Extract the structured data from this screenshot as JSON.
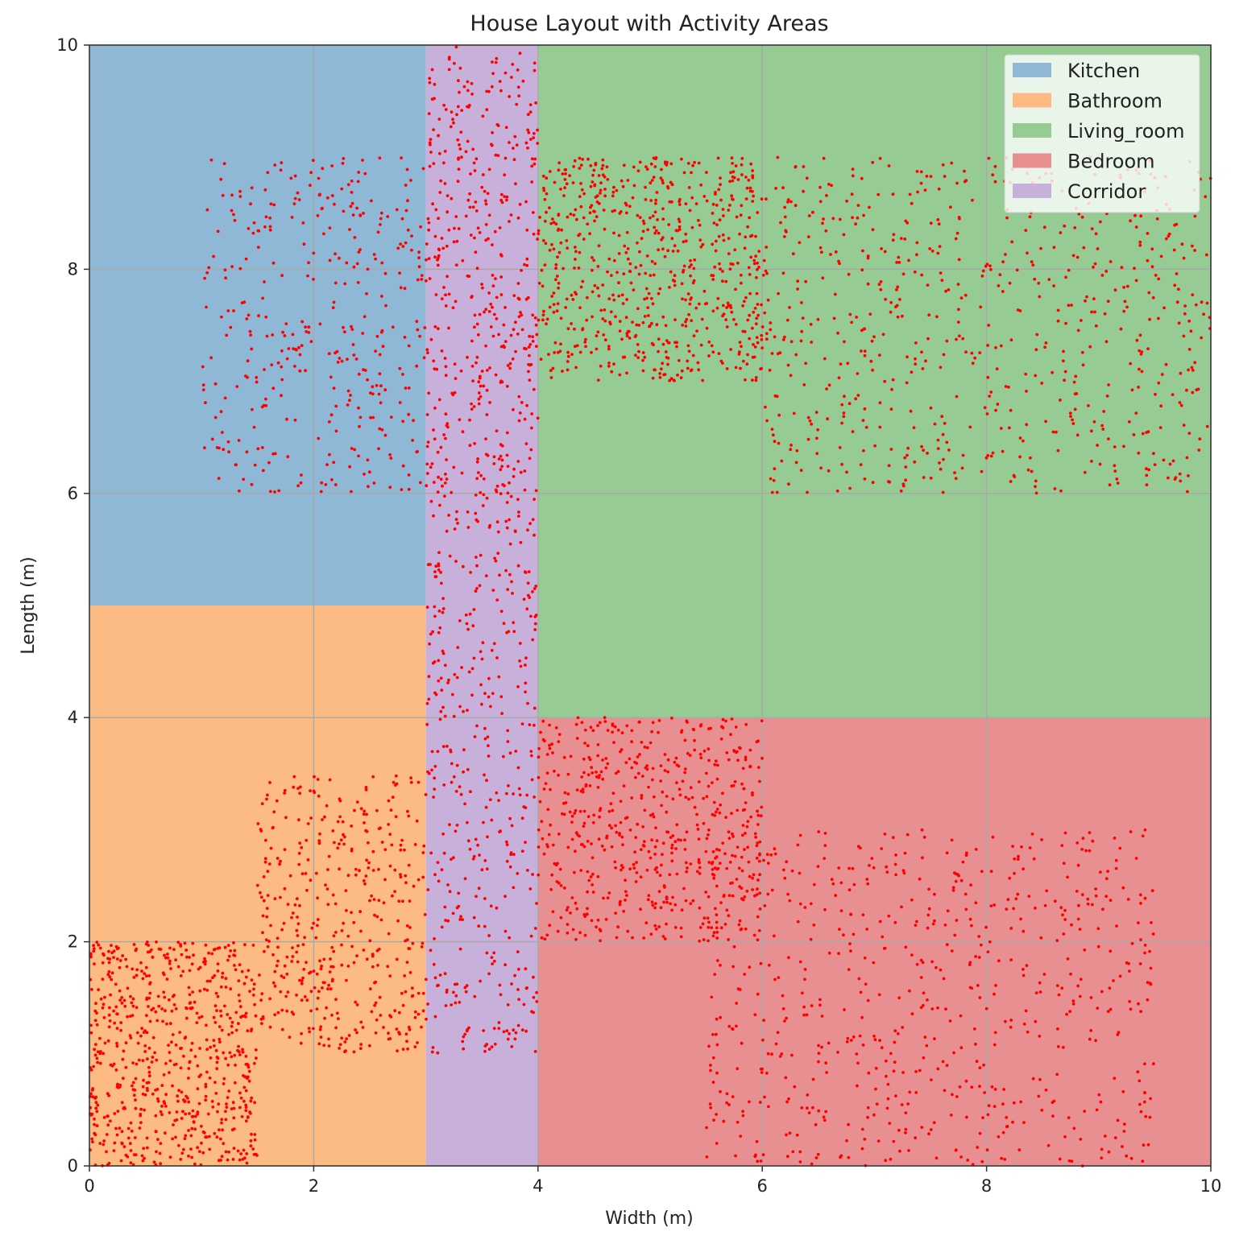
{
  "chart_data": {
    "type": "scatter",
    "title": "House Layout with Activity Areas",
    "xlabel": "Width (m)",
    "ylabel": "Length (m)",
    "xlim": [
      0,
      10
    ],
    "ylim": [
      0,
      10
    ],
    "xticks": [
      "0",
      "2",
      "4",
      "6",
      "8",
      "10"
    ],
    "yticks": [
      "0",
      "2",
      "4",
      "6",
      "8",
      "10"
    ],
    "grid": true,
    "legend_position": "top-right",
    "areas": [
      {
        "name": "Kitchen",
        "x0": 0,
        "x1": 3,
        "y0": 5,
        "y1": 10,
        "color": "#8fb8d6"
      },
      {
        "name": "Bathroom",
        "x0": 0,
        "x1": 3,
        "y0": 0,
        "y1": 5,
        "color": "#fdbb84"
      },
      {
        "name": "Living_room",
        "x0": 4,
        "x1": 10,
        "y0": 4,
        "y1": 10,
        "color": "#96cc94"
      },
      {
        "name": "Bedroom",
        "x0": 4,
        "x1": 10,
        "y0": 0,
        "y1": 4,
        "color": "#e89091"
      },
      {
        "name": "Corridor",
        "x0": 3,
        "x1": 4,
        "y0": 0,
        "y1": 10,
        "color": "#c7b1da"
      }
    ],
    "point_color": "#ff0000",
    "point_clusters": [
      {
        "area": "Kitchen",
        "x": [
          1,
          3
        ],
        "y": [
          6,
          9
        ],
        "count": 350
      },
      {
        "area": "Corridor",
        "x": [
          3,
          4
        ],
        "y": [
          6,
          10
        ],
        "count": 420
      },
      {
        "area": "Corridor",
        "x": [
          3,
          4
        ],
        "y": [
          1,
          6
        ],
        "count": 400
      },
      {
        "area": "Living_room",
        "x": [
          4,
          6
        ],
        "y": [
          7,
          9
        ],
        "count": 650
      },
      {
        "area": "Living_room",
        "x": [
          6,
          10
        ],
        "y": [
          6,
          9
        ],
        "count": 650
      },
      {
        "area": "Bathroom",
        "x": [
          0,
          1.5
        ],
        "y": [
          0,
          2
        ],
        "count": 650
      },
      {
        "area": "Bathroom",
        "x": [
          1.5,
          3
        ],
        "y": [
          1,
          3.5
        ],
        "count": 400
      },
      {
        "area": "Bedroom",
        "x": [
          4,
          6
        ],
        "y": [
          2,
          4
        ],
        "count": 550
      },
      {
        "area": "Bedroom",
        "x": [
          5.5,
          9.5
        ],
        "y": [
          0,
          3
        ],
        "count": 650
      }
    ]
  }
}
